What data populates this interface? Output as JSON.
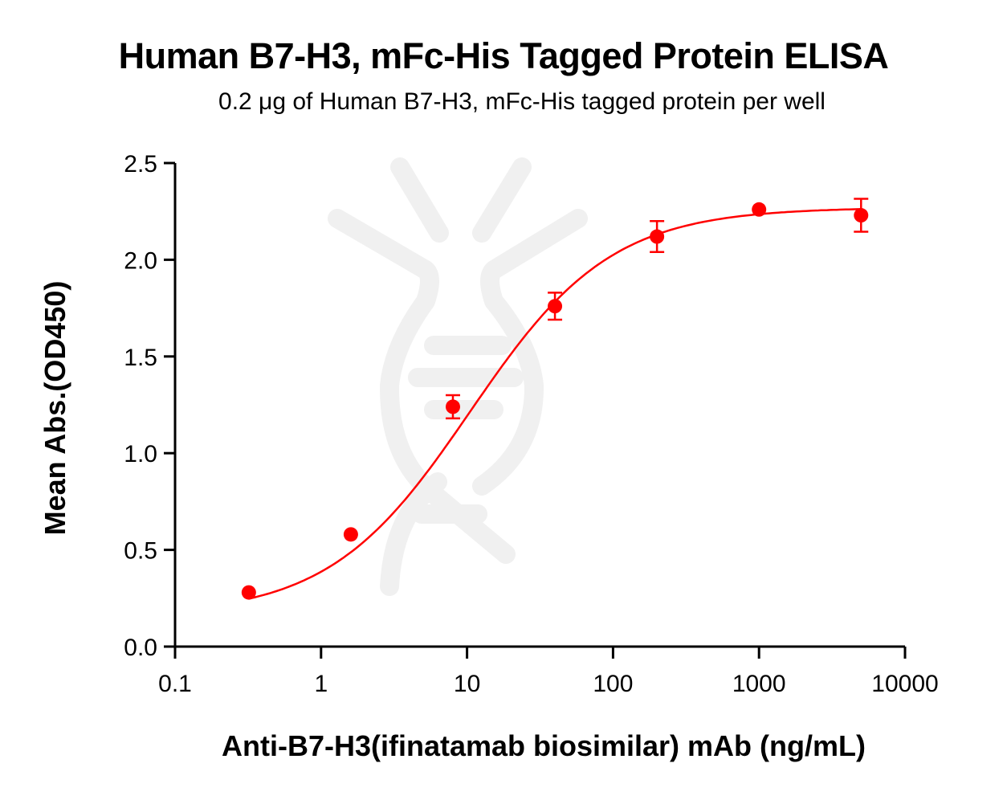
{
  "chart": {
    "title": "Human B7-H3, mFc-His Tagged Protein ELISA",
    "subtitle": "0.2 μg of Human B7-H3, mFc-His tagged protein per well",
    "xlabel": "Anti-B7-H3(ifinatamab biosimilar) mAb (ng/mL)",
    "ylabel": "Mean Abs.(OD450)",
    "colors": {
      "series": "#ff0000",
      "axis": "#000000",
      "watermark": "#f0f0f0"
    }
  },
  "chart_data": {
    "type": "scatter",
    "title": "Human B7-H3, mFc-His Tagged Protein ELISA",
    "subtitle": "0.2 μg of Human B7-H3, mFc-His tagged protein per well",
    "xlabel": "Anti-B7-H3(ifinatamab biosimilar) mAb (ng/mL)",
    "ylabel": "Mean Abs.(OD450)",
    "xscale": "log",
    "xlim": [
      0.1,
      10000
    ],
    "ylim": [
      0.0,
      2.5
    ],
    "x_ticks": [
      "0.1",
      "1",
      "10",
      "100",
      "1000",
      "10000"
    ],
    "y_ticks": [
      "0.0",
      "0.5",
      "1.0",
      "1.5",
      "2.0",
      "2.5"
    ],
    "grid": false,
    "legend": null,
    "fit": "4-parameter logistic curve",
    "series": [
      {
        "name": "Human B7-H3, mFc-His",
        "color": "#ff0000",
        "x": [
          0.32,
          1.6,
          8,
          40,
          200,
          1000,
          5000
        ],
        "y": [
          0.28,
          0.58,
          1.24,
          1.76,
          2.12,
          2.26,
          2.23
        ],
        "error": [
          0.01,
          0.01,
          0.06,
          0.07,
          0.08,
          0.01,
          0.085
        ]
      }
    ]
  }
}
